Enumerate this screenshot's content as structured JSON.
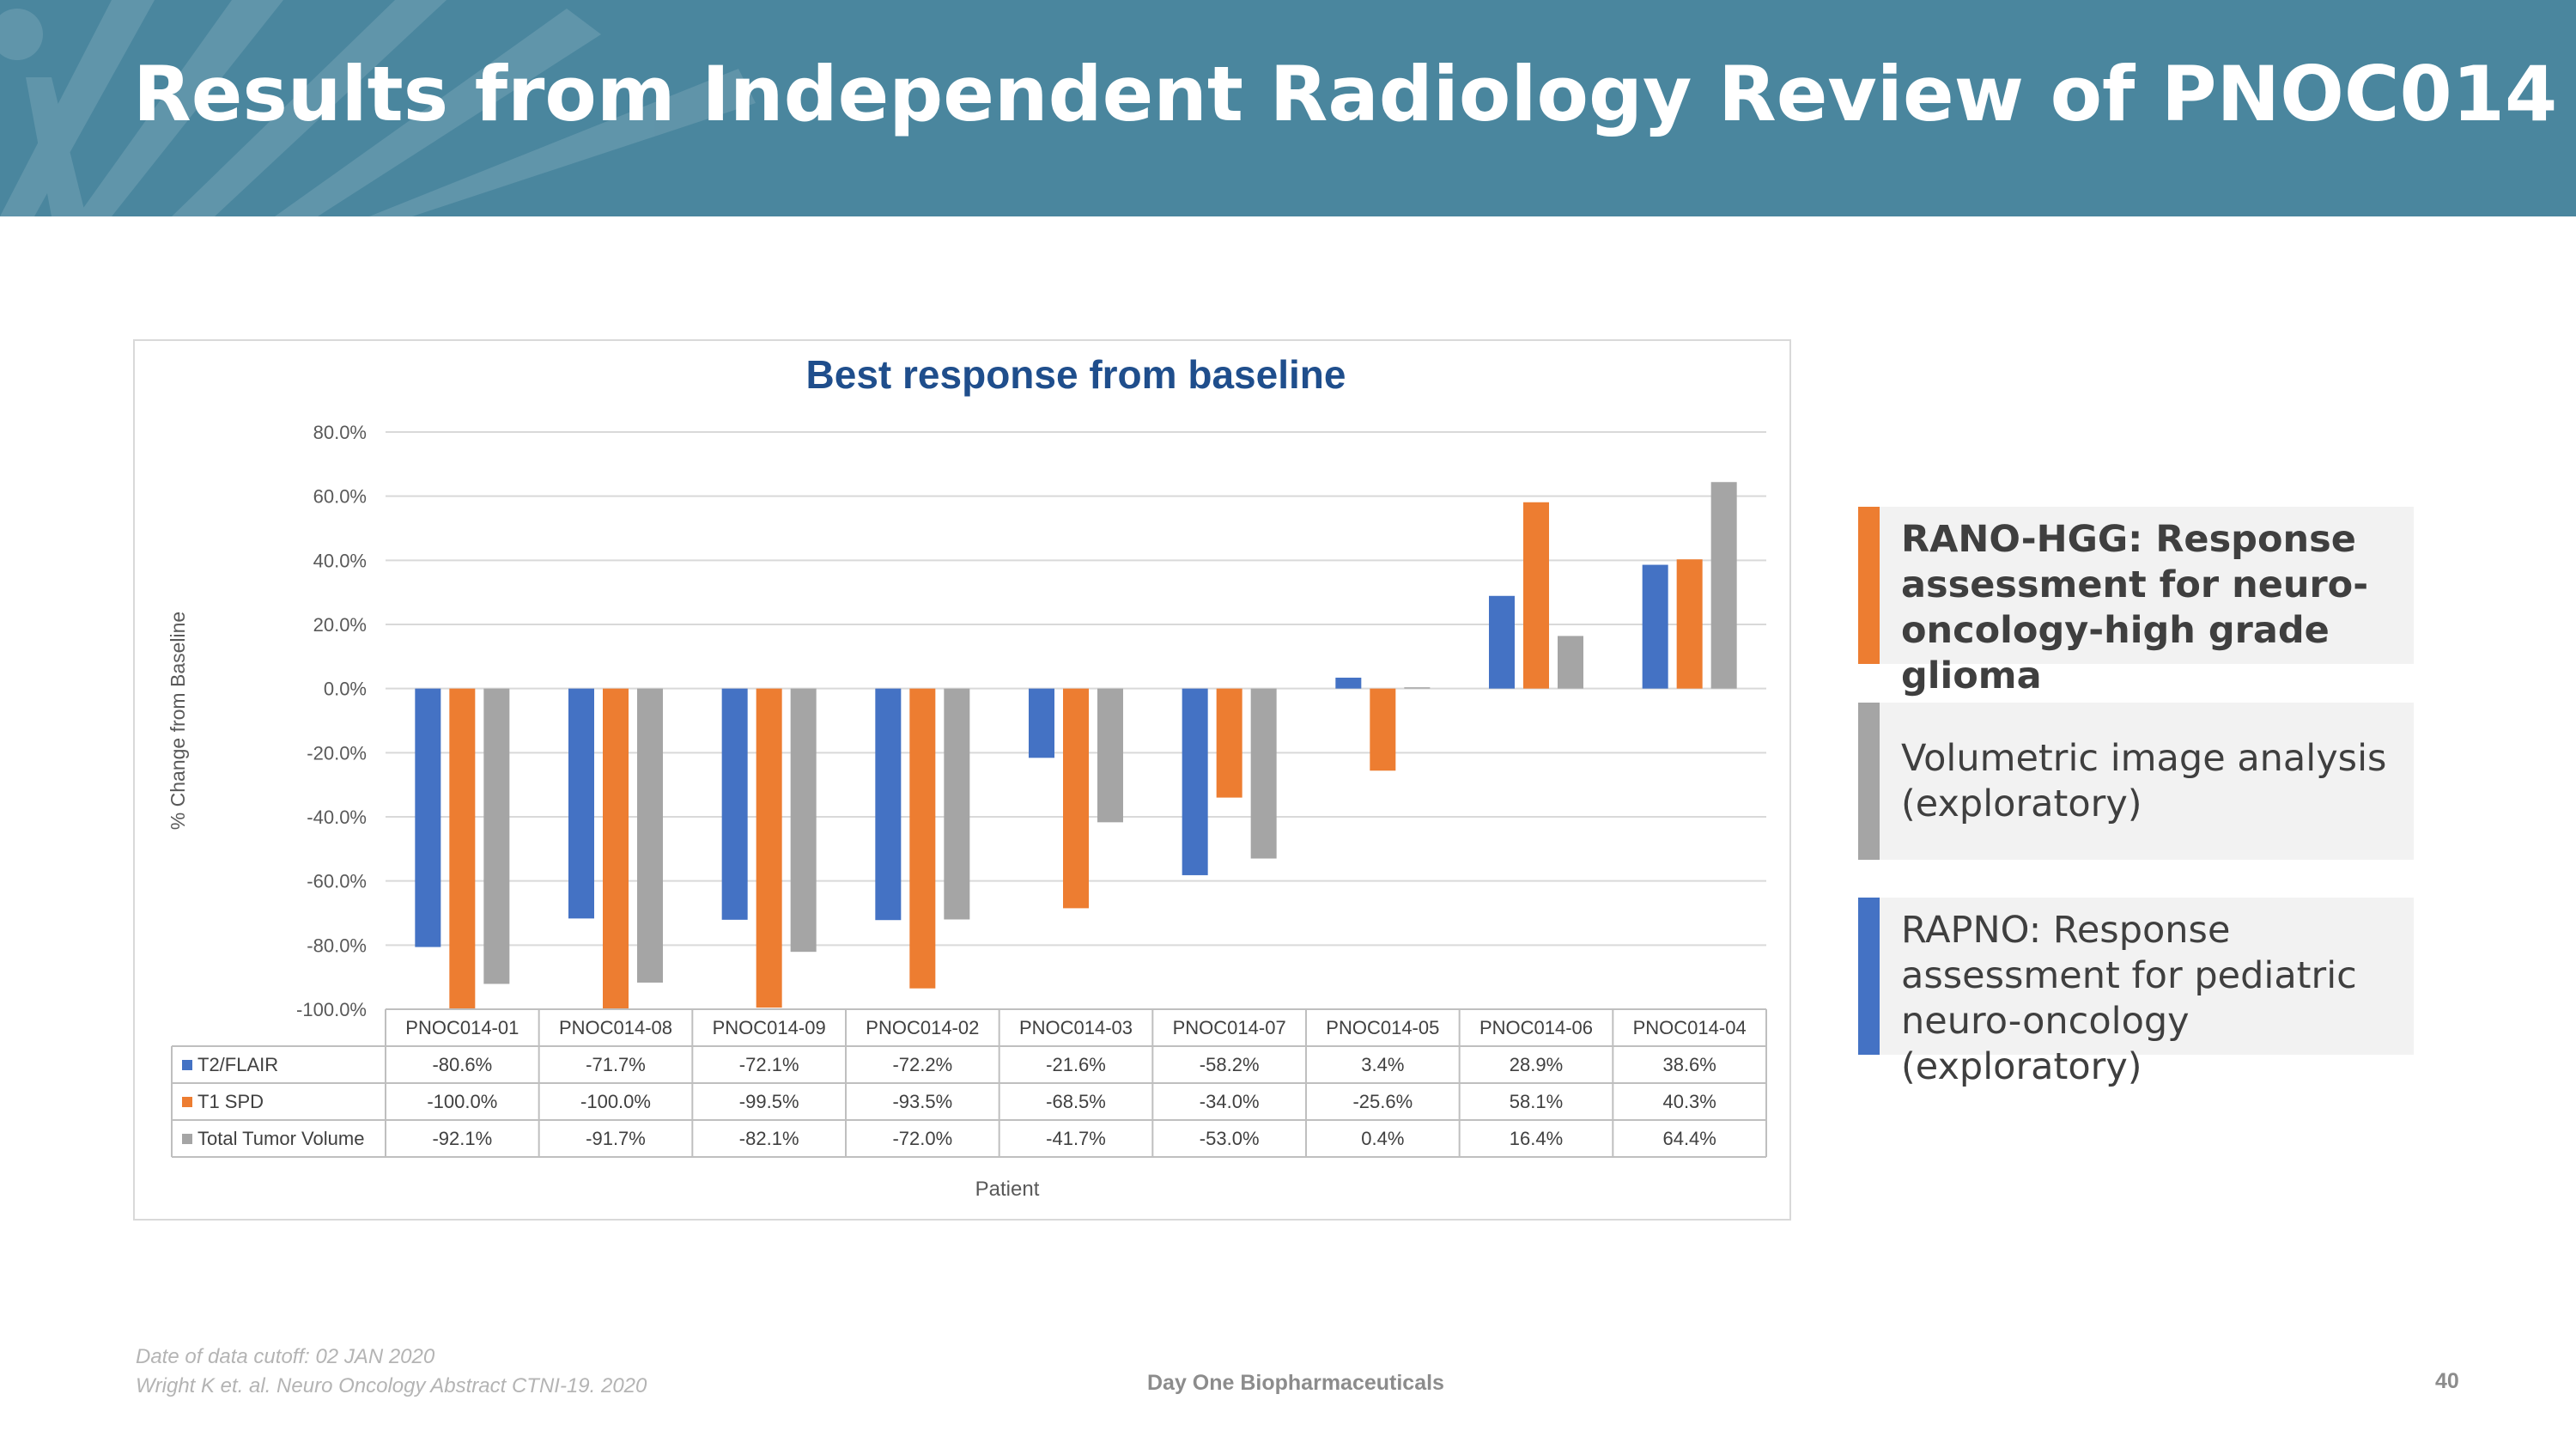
{
  "slide": {
    "title": "Results from Independent Radiology Review of PNOC014",
    "page_number": "40",
    "company": "Day One Biopharmaceuticals",
    "footnote_line1": "Date of data cutoff:  02 JAN 2020",
    "footnote_line2": "Wright K et. al.  Neuro Oncology Abstract CTNI-19. 2020"
  },
  "legend_cards": [
    {
      "text": "RANO-HGG: Response assessment for neuro-oncology-high grade glioma",
      "lines": [
        "RANO-HGG: Response",
        "assessment for neuro-",
        "oncology-high grade glioma"
      ],
      "color": "#ed7d31",
      "bold": true
    },
    {
      "text": "Volumetric image analysis (exploratory)",
      "lines": [
        "Volumetric image analysis",
        "(exploratory)"
      ],
      "color": "#a5a5a5",
      "bold": false
    },
    {
      "text": "RAPNO: Response assessment for pediatric neuro-oncology (exploratory)",
      "lines": [
        "RAPNO: Response",
        "assessment for pediatric",
        "neuro-oncology (exploratory)"
      ],
      "color": "#4472c4",
      "bold": false
    }
  ],
  "chart_data": {
    "type": "bar",
    "title": "Best response from baseline",
    "xlabel": "Patient",
    "ylabel": "% Change from Baseline",
    "ylim": [
      -100,
      80
    ],
    "yticks": [
      "80.0%",
      "60.0%",
      "40.0%",
      "20.0%",
      "0.0%",
      "-20.0%",
      "-40.0%",
      "-60.0%",
      "-80.0%",
      "-100.0%"
    ],
    "grid": true,
    "categories": [
      "PNOC014-01",
      "PNOC014-08",
      "PNOC014-09",
      "PNOC014-02",
      "PNOC014-03",
      "PNOC014-07",
      "PNOC014-05",
      "PNOC014-06",
      "PNOC014-04"
    ],
    "series": [
      {
        "name": "T2/FLAIR",
        "color": "#4472c4",
        "values": [
          -80.6,
          -71.7,
          -72.1,
          -72.2,
          -21.6,
          -58.2,
          3.4,
          28.9,
          38.6
        ],
        "labels": [
          "-80.6%",
          "-71.7%",
          "-72.1%",
          "-72.2%",
          "-21.6%",
          "-58.2%",
          "3.4%",
          "28.9%",
          "38.6%"
        ]
      },
      {
        "name": "T1 SPD",
        "color": "#ed7d31",
        "values": [
          -100.0,
          -100.0,
          -99.5,
          -93.5,
          -68.5,
          -34.0,
          -25.6,
          58.1,
          40.3
        ],
        "labels": [
          "-100.0%",
          "-100.0%",
          "-99.5%",
          "-93.5%",
          "-68.5%",
          "-34.0%",
          "-25.6%",
          "58.1%",
          "40.3%"
        ]
      },
      {
        "name": "Total Tumor Volume",
        "color": "#a5a5a5",
        "values": [
          -92.1,
          -91.7,
          -82.1,
          -72.0,
          -41.7,
          -53.0,
          0.4,
          16.4,
          64.4
        ],
        "labels": [
          "-92.1%",
          "-91.7%",
          "-82.1%",
          "-72.0%",
          "-41.7%",
          "-53.0%",
          "0.4%",
          "16.4%",
          "64.4%"
        ]
      }
    ]
  }
}
